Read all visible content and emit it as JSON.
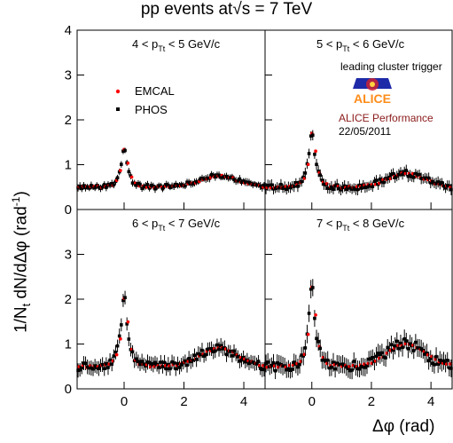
{
  "title_prefix": "pp events at",
  "title_sqrt": "√s",
  "title_suffix": " = 7 TeV",
  "ylabel_text": "1/N",
  "ylabel_sub": "t",
  "ylabel_mid": " dN/dΔφ (rad",
  "ylabel_sup": "-1",
  "ylabel_end": ")",
  "xlabel": "Δφ (rad)",
  "legend": {
    "header": "leading cluster trigger",
    "emcal": "EMCAL",
    "phos": "PHOS"
  },
  "alice": {
    "logo_text": "ALICE",
    "performance": "ALICE Performance",
    "date": "22/05/2011"
  },
  "colors": {
    "emcal": "#ff0000",
    "phos": "#000000",
    "alice": "#8b1a1a",
    "logo_blue": "#1e2aa8"
  },
  "chart_data": {
    "type": "scatter",
    "grid": false,
    "xlim": [
      -1.57,
      4.71
    ],
    "ylim": [
      0,
      4
    ],
    "x_ticks": [
      "0",
      "2",
      "4"
    ],
    "y_ticks": [
      "0",
      "1",
      "2",
      "3",
      "4"
    ],
    "y_ticks_lower": [
      "0",
      "1",
      "2",
      "3"
    ],
    "panels": [
      {
        "label_pre": "4 < p",
        "label_sub": "Tt",
        "label_post": " < 5 GeV/c",
        "peak": 1.5,
        "base": 0.5,
        "away": 0.75
      },
      {
        "label_pre": "5 < p",
        "label_sub": "Tt",
        "label_post": " < 6 GeV/c",
        "peak": 1.92,
        "base": 0.5,
        "away": 0.8
      },
      {
        "label_pre": "6 < p",
        "label_sub": "Tt",
        "label_post": " < 7 GeV/c",
        "peak": 2.3,
        "base": 0.5,
        "away": 0.9
      },
      {
        "label_pre": "7 < p",
        "label_sub": "Tt",
        "label_post": " < 8 GeV/c",
        "peak": 2.6,
        "base": 0.5,
        "away": 1.0
      }
    ],
    "series": [
      {
        "name": "EMCAL"
      },
      {
        "name": "PHOS"
      }
    ]
  }
}
